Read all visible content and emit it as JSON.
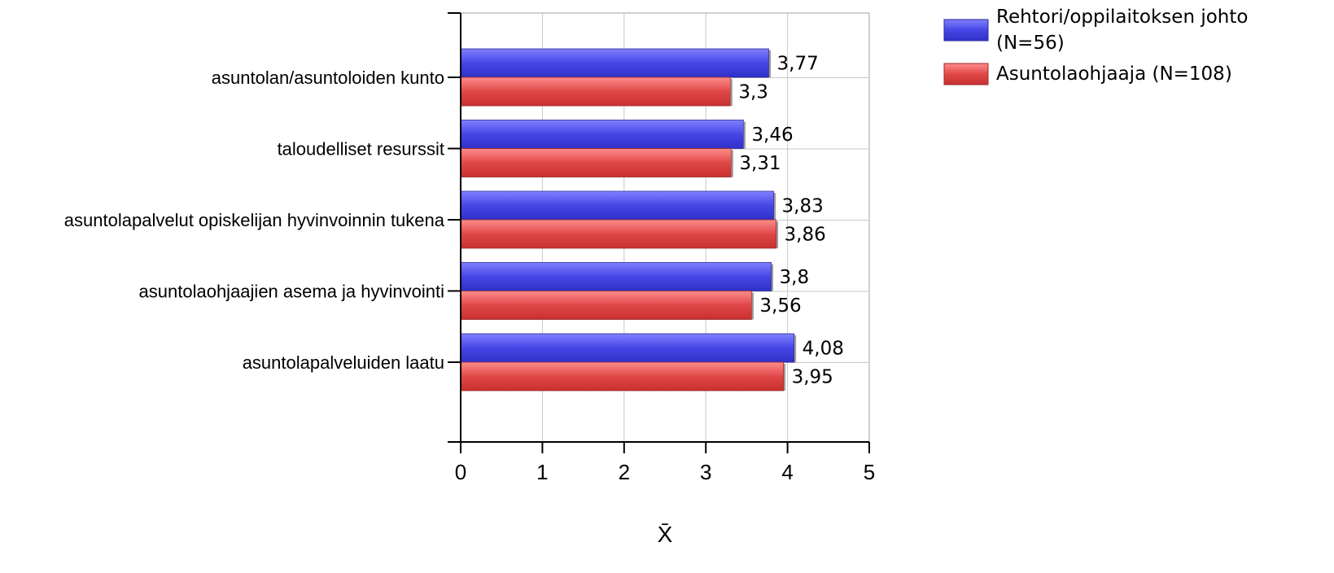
{
  "chart_data": {
    "type": "bar",
    "orientation": "horizontal",
    "categories": [
      "asuntolan/asuntoloiden kunto",
      "taloudelliset resurssit",
      "asuntolapalvelut opiskelijan hyvinvoinnin tukena",
      "asuntolaohjaajien asema ja hyvinvointi",
      "asuntolapalveluiden laatu"
    ],
    "series": [
      {
        "name": "Rehtori/oppilaitoksen johto (N=56)",
        "legend_lines": [
          "Rehtori/oppilaitoksen johto",
          "(N=56)"
        ],
        "color": "#4646e6",
        "values": [
          3.77,
          3.46,
          3.83,
          3.8,
          4.08
        ],
        "value_labels": [
          "3,77",
          "3,46",
          "3,83",
          "3,8",
          "4,08"
        ]
      },
      {
        "name": "Asuntolaohjaaja (N=108)",
        "legend_lines": [
          "Asuntolaohjaaja (N=108)"
        ],
        "color": "#e04848",
        "values": [
          3.3,
          3.31,
          3.86,
          3.56,
          3.95
        ],
        "value_labels": [
          "3,3",
          "3,31",
          "3,86",
          "3,56",
          "3,95"
        ]
      }
    ],
    "xlabel": "X̄",
    "xlim": [
      0,
      5
    ],
    "xticks": [
      "0",
      "1",
      "2",
      "3",
      "4",
      "5"
    ],
    "grid": true,
    "legend_position": "top-right"
  }
}
